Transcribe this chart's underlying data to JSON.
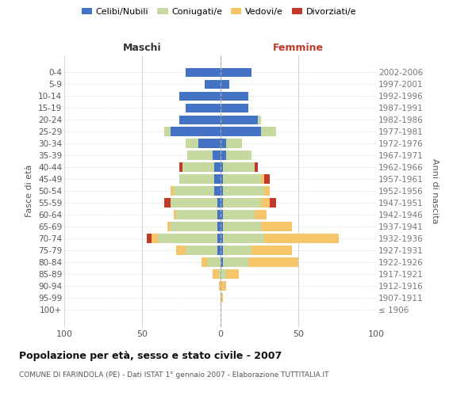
{
  "age_groups": [
    "100+",
    "95-99",
    "90-94",
    "85-89",
    "80-84",
    "75-79",
    "70-74",
    "65-69",
    "60-64",
    "55-59",
    "50-54",
    "45-49",
    "40-44",
    "35-39",
    "30-34",
    "25-29",
    "20-24",
    "15-19",
    "10-14",
    "5-9",
    "0-4"
  ],
  "birth_years": [
    "≤ 1906",
    "1907-1911",
    "1912-1916",
    "1917-1921",
    "1922-1926",
    "1927-1931",
    "1932-1936",
    "1937-1941",
    "1942-1946",
    "1947-1951",
    "1952-1956",
    "1957-1961",
    "1962-1966",
    "1967-1971",
    "1972-1976",
    "1977-1981",
    "1982-1986",
    "1987-1991",
    "1992-1996",
    "1997-2001",
    "2002-2006"
  ],
  "male_celibi": [
    0,
    0,
    0,
    0,
    0,
    2,
    2,
    2,
    2,
    2,
    4,
    4,
    4,
    5,
    14,
    32,
    26,
    22,
    26,
    10,
    22
  ],
  "male_coniugati": [
    0,
    0,
    0,
    1,
    8,
    20,
    38,
    30,
    26,
    30,
    26,
    22,
    20,
    16,
    8,
    4,
    0,
    0,
    0,
    0,
    0
  ],
  "male_vedovi": [
    0,
    0,
    1,
    4,
    4,
    6,
    4,
    2,
    2,
    0,
    2,
    0,
    0,
    0,
    0,
    0,
    0,
    0,
    0,
    0,
    0
  ],
  "male_divorziati": [
    0,
    0,
    0,
    0,
    0,
    0,
    3,
    0,
    0,
    4,
    0,
    0,
    2,
    0,
    0,
    0,
    0,
    0,
    0,
    0,
    0
  ],
  "female_nubili": [
    0,
    0,
    0,
    0,
    2,
    2,
    2,
    2,
    2,
    2,
    2,
    2,
    2,
    4,
    4,
    26,
    24,
    18,
    18,
    6,
    20
  ],
  "female_coniugate": [
    0,
    0,
    0,
    4,
    16,
    18,
    26,
    24,
    20,
    24,
    26,
    24,
    20,
    16,
    10,
    10,
    2,
    0,
    0,
    0,
    0
  ],
  "female_vedove": [
    0,
    2,
    4,
    8,
    32,
    26,
    48,
    20,
    8,
    6,
    4,
    2,
    0,
    0,
    0,
    0,
    0,
    0,
    0,
    0,
    0
  ],
  "female_divorziate": [
    0,
    0,
    0,
    0,
    0,
    0,
    0,
    0,
    0,
    4,
    0,
    4,
    2,
    0,
    0,
    0,
    0,
    0,
    0,
    0,
    0
  ],
  "color_celibi": "#4472c4",
  "color_coniugati": "#c5d9a0",
  "color_vedovi": "#f5c56a",
  "color_divorziati": "#c0392b",
  "xlim": 100,
  "title": "Popolazione per età, sesso e stato civile - 2007",
  "subtitle": "COMUNE DI FARINDOLA (PE) - Dati ISTAT 1° gennaio 2007 - Elaborazione TUTTITALIA.IT",
  "ylabel_left": "Fasce di età",
  "ylabel_right": "Anni di nascita",
  "label_maschi": "Maschi",
  "label_femmine": "Femmine",
  "legend_labels": [
    "Celibi/Nubili",
    "Coniugati/e",
    "Vedovi/e",
    "Divorziati/e"
  ]
}
